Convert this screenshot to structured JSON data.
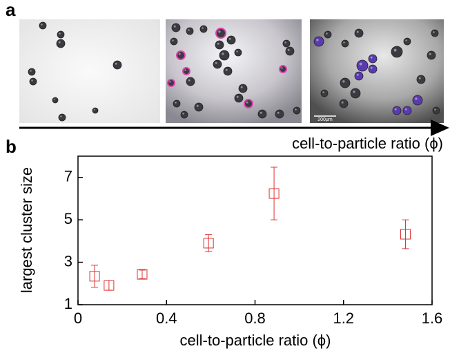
{
  "figure": {
    "panel_labels": [
      "a",
      "b"
    ],
    "scale_bar": "200μm",
    "arrow_label": "cell-to-particle ratio (ϕ)"
  },
  "chart_data": {
    "type": "scatter",
    "x_label": "cell-to-particle ratio (ϕ)",
    "y_label": "largest cluster size",
    "x": [
      0.075,
      0.14,
      0.29,
      0.59,
      0.886,
      1.48
    ],
    "values": [
      2.34,
      1.91,
      2.43,
      3.9,
      6.24,
      4.32
    ],
    "errors": [
      0.52,
      0.23,
      0.2,
      0.4,
      1.24,
      0.68
    ],
    "color": "#e03030",
    "xlim": [
      0,
      1.6
    ],
    "xticks": [
      0,
      0.4,
      0.8,
      1.2,
      1.6
    ],
    "ylim": [
      1,
      8
    ],
    "yticks": [
      1,
      3,
      5,
      7
    ]
  }
}
